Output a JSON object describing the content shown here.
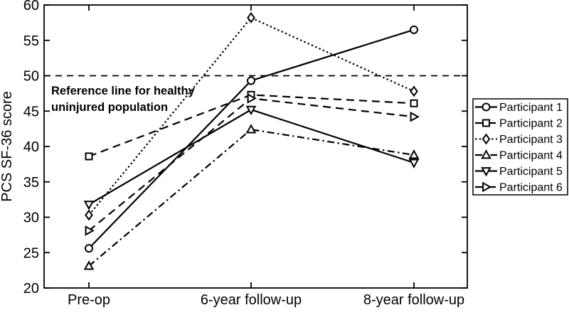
{
  "figure": {
    "background": "#ffffff",
    "ink": "#000000"
  },
  "chart_data": {
    "type": "line",
    "title": "",
    "xlabel": "",
    "ylabel": "PCS SF-36 score",
    "ylim": [
      20,
      60
    ],
    "yticks": [
      20,
      25,
      30,
      35,
      40,
      45,
      50,
      55,
      60
    ],
    "categories": [
      "Pre-op",
      "6-year follow-up",
      "8-year follow-up"
    ],
    "grid": false,
    "box": true,
    "series": [
      {
        "name": "Participant 1",
        "marker": "circle",
        "line_style": "solid",
        "color": "#000000",
        "values": [
          25.6,
          49.3,
          56.5
        ]
      },
      {
        "name": "Participant 2",
        "marker": "square",
        "line_style": "dashed",
        "color": "#000000",
        "values": [
          38.6,
          47.3,
          46.1
        ]
      },
      {
        "name": "Participant 3",
        "marker": "diamond",
        "line_style": "dotted",
        "color": "#000000",
        "values": [
          30.3,
          58.2,
          47.8
        ]
      },
      {
        "name": "Participant 4",
        "marker": "triangle-up",
        "line_style": "dashdot",
        "color": "#000000",
        "values": [
          23.1,
          42.4,
          38.8
        ]
      },
      {
        "name": "Participant 5",
        "marker": "triangle-down",
        "line_style": "solid",
        "color": "#000000",
        "values": [
          31.8,
          45.2,
          37.7
        ]
      },
      {
        "name": "Participant 6",
        "marker": "triangle-right",
        "line_style": "dashed",
        "color": "#000000",
        "values": [
          28.1,
          46.8,
          44.2
        ]
      }
    ],
    "reference_line": {
      "value": 50,
      "style": "dashed",
      "label_lines": [
        "Reference line for healthy",
        "uninjured population"
      ]
    },
    "legend": {
      "position": "outside-right",
      "entries": [
        "Participant 1",
        "Participant 2",
        "Participant 3",
        "Participant 4",
        "Participant 5",
        "Participant 6"
      ]
    }
  }
}
